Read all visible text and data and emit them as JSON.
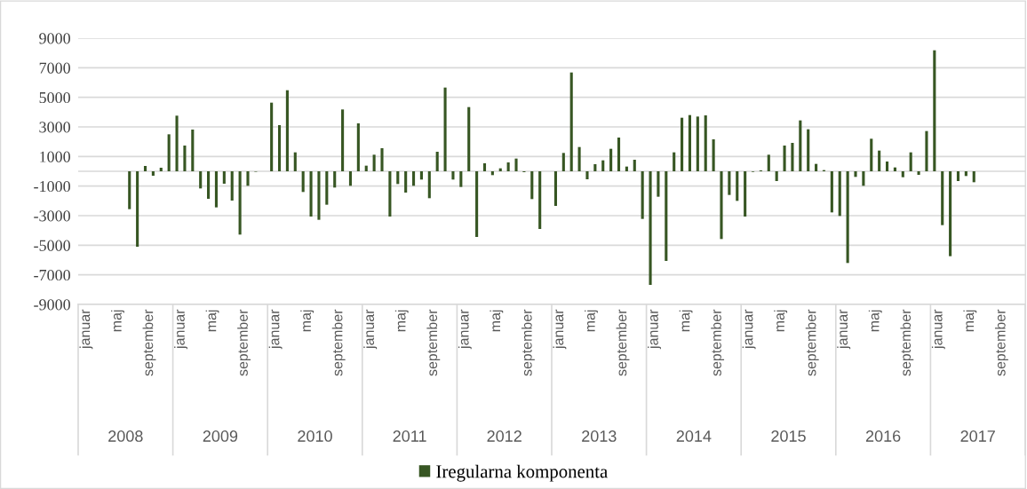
{
  "chart_data": {
    "type": "bar",
    "categories": [
      "januar",
      null,
      null,
      null,
      "maj",
      null,
      null,
      null,
      "september",
      null,
      null,
      null,
      "januar",
      null,
      null,
      null,
      "maj",
      null,
      null,
      null,
      "september",
      null,
      null,
      null,
      "januar",
      null,
      null,
      null,
      "maj",
      null,
      null,
      null,
      "september",
      null,
      null,
      null,
      "januar",
      null,
      null,
      null,
      "maj",
      null,
      null,
      null,
      "september",
      null,
      null,
      null,
      "januar",
      null,
      null,
      null,
      "maj",
      null,
      null,
      null,
      "september",
      null,
      null,
      null,
      "januar",
      null,
      null,
      null,
      "maj",
      null,
      null,
      null,
      "september",
      null,
      null,
      null,
      "januar",
      null,
      null,
      null,
      "maj",
      null,
      null,
      null,
      "september",
      null,
      null,
      null,
      "januar",
      null,
      null,
      null,
      "maj",
      null,
      null,
      null,
      "september",
      null,
      null,
      null,
      "januar",
      null,
      null,
      null,
      "maj",
      null,
      null,
      null,
      "september",
      null,
      null,
      null,
      "januar",
      null,
      null,
      null,
      "maj",
      null,
      null,
      null,
      "september",
      null,
      null,
      null
    ],
    "series": [
      {
        "name": "Iregularna komponenta",
        "color": "#375623",
        "values": [
          null,
          null,
          null,
          null,
          null,
          null,
          -2560,
          -5100,
          360,
          -300,
          240,
          2500,
          3760,
          1740,
          2820,
          -1160,
          -1860,
          -2440,
          -840,
          -1980,
          -4280,
          -980,
          -30,
          0,
          4640,
          3120,
          5480,
          1280,
          -1400,
          -3060,
          -3280,
          -2260,
          -1100,
          4180,
          -980,
          3240,
          380,
          1120,
          1560,
          -3060,
          -860,
          -1440,
          -980,
          -560,
          -1820,
          1320,
          5660,
          -560,
          -1060,
          4340,
          -4440,
          540,
          -260,
          200,
          600,
          860,
          -60,
          -1880,
          -3900,
          0,
          -2340,
          1240,
          6680,
          1640,
          -540,
          480,
          740,
          1520,
          2280,
          320,
          780,
          -3220,
          -7680,
          -1720,
          -6060,
          1280,
          3620,
          3800,
          3700,
          3780,
          2160,
          -4580,
          -1600,
          -2000,
          -3060,
          -40,
          60,
          1120,
          -660,
          1740,
          1920,
          3440,
          2840,
          500,
          80,
          -2780,
          -3020,
          -6200,
          -380,
          -980,
          2200,
          1400,
          660,
          260,
          -400,
          1280,
          -240,
          2720,
          8180,
          -3640,
          -5740,
          -660,
          -320,
          -740,
          null,
          null,
          null,
          null,
          null,
          null
        ]
      }
    ],
    "annotations": [
      "2008",
      "2009",
      "2010",
      "2011",
      "2012",
      "2013",
      "2014",
      "2015",
      "2016",
      "2017"
    ],
    "ylim": [
      -9000,
      9000
    ],
    "yticks": [
      -9000,
      -7000,
      -5000,
      -3000,
      -1000,
      1000,
      3000,
      5000,
      7000,
      9000
    ],
    "ref_lines": [
      {
        "axis": "y",
        "value": 0,
        "color": "#d9d9d9"
      }
    ],
    "grid": "y",
    "legend": "bottom"
  }
}
